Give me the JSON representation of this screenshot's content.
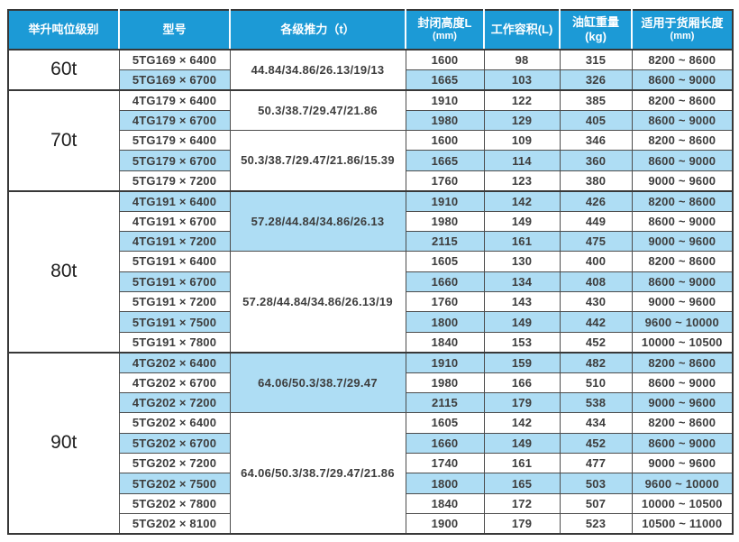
{
  "colors": {
    "header_bg": "#1c9ad6",
    "stripe_bg": "#aeddf4",
    "grid_border": "#4c4c4c",
    "outer_border": "#383838",
    "text": "#3d3d3d"
  },
  "header": {
    "col_tonnage": "举升吨位级别",
    "col_model": "型号",
    "col_thrust": "各级推力（t）",
    "col_height_line1": "封闭高度L",
    "col_height_line2": "(mm)",
    "col_volume": "工作容积(L)",
    "col_weight": "油缸重量(kg)",
    "col_length_line1": "适用于货厢长度",
    "col_length_line2": "(mm)"
  },
  "groups": [
    {
      "tonnage": "60t",
      "subgroups": [
        {
          "thrust": "44.84/34.86/26.13/19/13",
          "thrust_striped": false,
          "rows": [
            {
              "model": "5TG169 × 6400",
              "height": "1600",
              "volume": "98",
              "weight": "315",
              "length": "8200 ~ 8600",
              "striped": false
            },
            {
              "model": "5TG169 × 6700",
              "height": "1665",
              "volume": "103",
              "weight": "326",
              "length": "8600 ~ 9000",
              "striped": true
            }
          ]
        }
      ]
    },
    {
      "tonnage": "70t",
      "subgroups": [
        {
          "thrust": "50.3/38.7/29.47/21.86",
          "thrust_striped": false,
          "rows": [
            {
              "model": "4TG179 × 6400",
              "height": "1910",
              "volume": "122",
              "weight": "385",
              "length": "8200 ~ 8600",
              "striped": false
            },
            {
              "model": "4TG179 × 6700",
              "height": "1980",
              "volume": "129",
              "weight": "405",
              "length": "8600 ~ 9000",
              "striped": true
            }
          ]
        },
        {
          "thrust": "50.3/38.7/29.47/21.86/15.39",
          "thrust_striped": false,
          "rows": [
            {
              "model": "5TG179 × 6400",
              "height": "1600",
              "volume": "109",
              "weight": "346",
              "length": "8200 ~ 8600",
              "striped": false
            },
            {
              "model": "5TG179 × 6700",
              "height": "1665",
              "volume": "114",
              "weight": "360",
              "length": "8600 ~ 9000",
              "striped": true
            },
            {
              "model": "5TG179 × 7200",
              "height": "1760",
              "volume": "123",
              "weight": "380",
              "length": "9000 ~ 9600",
              "striped": false
            }
          ]
        }
      ]
    },
    {
      "tonnage": "80t",
      "subgroups": [
        {
          "thrust": "57.28/44.84/34.86/26.13",
          "thrust_striped": true,
          "rows": [
            {
              "model": "4TG191 × 6400",
              "height": "1910",
              "volume": "142",
              "weight": "426",
              "length": "8200 ~ 8600",
              "striped": true
            },
            {
              "model": "4TG191 × 6700",
              "height": "1980",
              "volume": "149",
              "weight": "449",
              "length": "8600 ~ 9000",
              "striped": false
            },
            {
              "model": "4TG191 × 7200",
              "height": "2115",
              "volume": "161",
              "weight": "475",
              "length": "9000 ~ 9600",
              "striped": true
            }
          ]
        },
        {
          "thrust": "57.28/44.84/34.86/26.13/19",
          "thrust_striped": false,
          "rows": [
            {
              "model": "5TG191 × 6400",
              "height": "1605",
              "volume": "130",
              "weight": "400",
              "length": "8200 ~ 8600",
              "striped": false
            },
            {
              "model": "5TG191 × 6700",
              "height": "1660",
              "volume": "134",
              "weight": "408",
              "length": "8600 ~ 9000",
              "striped": true
            },
            {
              "model": "5TG191 × 7200",
              "height": "1760",
              "volume": "143",
              "weight": "430",
              "length": "9000 ~ 9600",
              "striped": false
            },
            {
              "model": "5TG191 × 7500",
              "height": "1800",
              "volume": "149",
              "weight": "442",
              "length": "9600 ~ 10000",
              "striped": true
            },
            {
              "model": "5TG191 × 7800",
              "height": "1840",
              "volume": "153",
              "weight": "452",
              "length": "10000 ~ 10500",
              "striped": false
            }
          ]
        }
      ]
    },
    {
      "tonnage": "90t",
      "subgroups": [
        {
          "thrust": "64.06/50.3/38.7/29.47",
          "thrust_striped": true,
          "rows": [
            {
              "model": "4TG202 × 6400",
              "height": "1910",
              "volume": "159",
              "weight": "482",
              "length": "8200 ~ 8600",
              "striped": true
            },
            {
              "model": "4TG202 × 6700",
              "height": "1980",
              "volume": "166",
              "weight": "510",
              "length": "8600 ~ 9000",
              "striped": false
            },
            {
              "model": "4TG202 × 7200",
              "height": "2115",
              "volume": "179",
              "weight": "538",
              "length": "9000 ~ 9600",
              "striped": true
            }
          ]
        },
        {
          "thrust": "64.06/50.3/38.7/29.47/21.86",
          "thrust_striped": false,
          "rows": [
            {
              "model": "5TG202 × 6400",
              "height": "1605",
              "volume": "142",
              "weight": "434",
              "length": "8200 ~ 8600",
              "striped": false
            },
            {
              "model": "5TG202 × 6700",
              "height": "1660",
              "volume": "149",
              "weight": "452",
              "length": "8600 ~ 9000",
              "striped": true
            },
            {
              "model": "5TG202 × 7200",
              "height": "1740",
              "volume": "161",
              "weight": "477",
              "length": "9000 ~ 9600",
              "striped": false
            },
            {
              "model": "5TG202 × 7500",
              "height": "1800",
              "volume": "165",
              "weight": "503",
              "length": "9600 ~ 10000",
              "striped": true
            },
            {
              "model": "5TG202 × 7800",
              "height": "1840",
              "volume": "172",
              "weight": "507",
              "length": "10000 ~ 10500",
              "striped": false
            },
            {
              "model": "5TG202 × 8100",
              "height": "1900",
              "volume": "179",
              "weight": "523",
              "length": "10500 ~ 11000",
              "striped": false
            }
          ]
        }
      ]
    }
  ]
}
